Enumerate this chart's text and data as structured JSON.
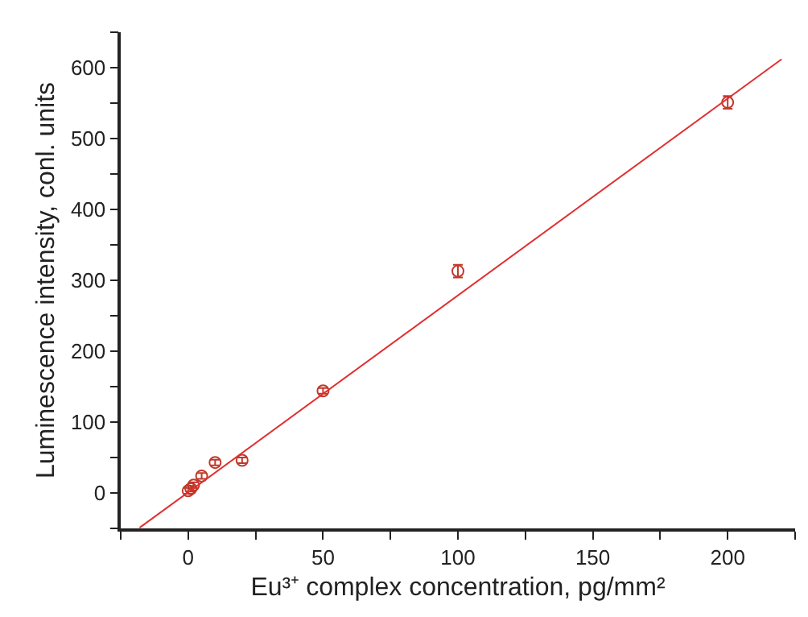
{
  "chart_data": {
    "type": "scatter",
    "xlabel": "Eu³⁺ complex concentration, pg/mm²",
    "ylabel": "Luminescence intensity, conl. units",
    "xlim": [
      -25,
      225
    ],
    "ylim": [
      -50,
      650
    ],
    "xticks": [
      {
        "value": -25,
        "label": null
      },
      0,
      {
        "value": 25,
        "label": null
      },
      50,
      {
        "value": 75,
        "label": null
      },
      100,
      {
        "value": 125,
        "label": null
      },
      150,
      {
        "value": 175,
        "label": null
      },
      200,
      {
        "value": 225,
        "label": null
      }
    ],
    "yticks": [
      {
        "value": -50,
        "label": null
      },
      0,
      {
        "value": 50,
        "label": null
      },
      100,
      {
        "value": 150,
        "label": null
      },
      200,
      {
        "value": 250,
        "label": null
      },
      300,
      {
        "value": 350,
        "label": null
      },
      400,
      {
        "value": 450,
        "label": null
      },
      500,
      {
        "value": 550,
        "label": null
      },
      600,
      {
        "value": 650,
        "label": null
      }
    ],
    "grid": false,
    "legend": false,
    "series": [
      {
        "marker": "circle",
        "color": "#c0392b",
        "x": [
          0,
          1,
          2,
          5,
          10,
          20,
          50,
          100,
          200
        ],
        "values": [
          3,
          6,
          11,
          24,
          43,
          46,
          144,
          313,
          551
        ],
        "errors": [
          4,
          4,
          4,
          4,
          4,
          4,
          4,
          9,
          9
        ]
      },
      {
        "type": "line",
        "color": "#e03030",
        "x": [
          -18,
          220
        ],
        "values": [
          -49,
          612
        ],
        "line_style": "solid"
      }
    ]
  }
}
